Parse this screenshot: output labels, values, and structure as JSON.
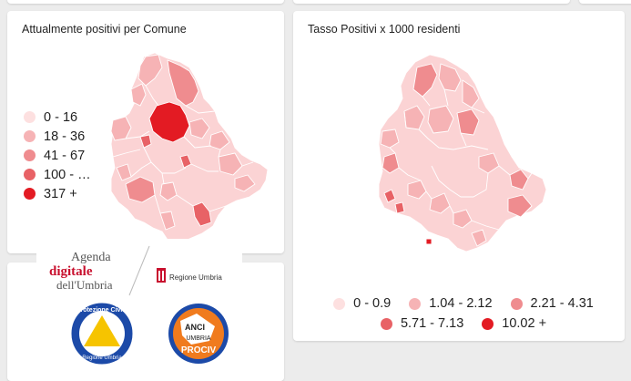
{
  "cards": {
    "left_title": "Attualmente positivi per Comune",
    "right_title": "Tasso Positivi x 1000 residenti"
  },
  "colors": {
    "level1": "#fde0e0",
    "level2": "#f6b3b5",
    "level3": "#ef8c8f",
    "level4": "#e86266",
    "level5": "#e31b23",
    "map_base": "#fbd3d4",
    "border": "#ffffff"
  },
  "left_legend": [
    {
      "label": "0 - 16",
      "color": "#fde0e0"
    },
    {
      "label": "18 - 36",
      "color": "#f6b3b5"
    },
    {
      "label": "41 - 67",
      "color": "#ef8c8f"
    },
    {
      "label": "100 - …",
      "color": "#e86266"
    },
    {
      "label": "317 +",
      "color": "#e31b23"
    }
  ],
  "right_legend": [
    {
      "label": "0 - 0.9",
      "color": "#fde0e0"
    },
    {
      "label": "1.04 - 2.12",
      "color": "#f6b3b5"
    },
    {
      "label": "2.21 - 4.31",
      "color": "#ef8c8f"
    },
    {
      "label": "5.71 - 7.13",
      "color": "#e86266"
    },
    {
      "label": "10.02 +",
      "color": "#e31b23"
    }
  ],
  "logos": {
    "agenda_line1": "Agenda",
    "agenda_line2": "digitale",
    "agenda_line3": "dell'Umbria",
    "regione": "Regione Umbria",
    "protezione_top": "Protezione Civile",
    "protezione_bottom": "Regione Umbria",
    "anci_line1": "ANCI",
    "anci_line2": "UMBRIA",
    "anci_line3": "PROCIV"
  }
}
